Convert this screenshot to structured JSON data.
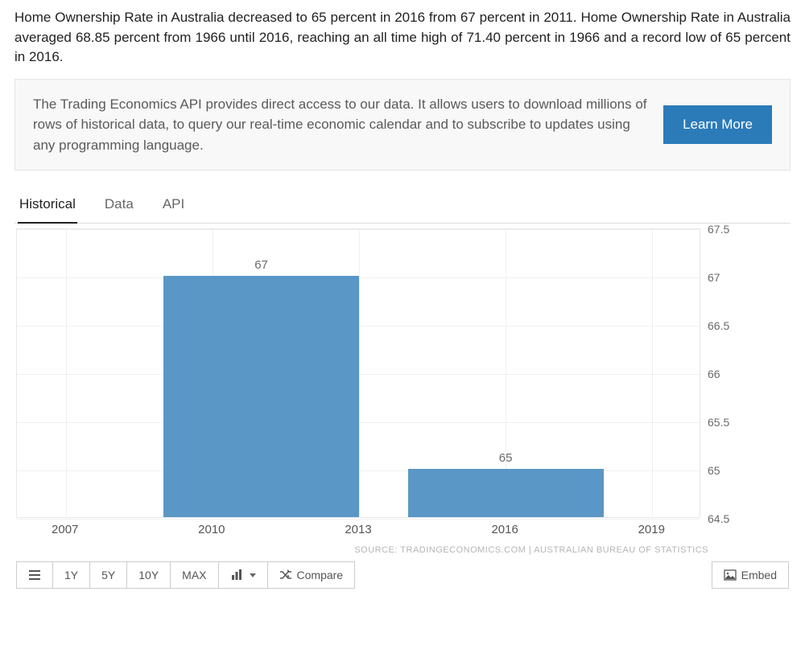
{
  "description": "Home Ownership Rate in Australia decreased to 65 percent in 2016 from 67 percent in 2011. Home Ownership Rate in Australia averaged 68.85 percent from 1966 until 2016, reaching an all time high of 71.40 percent in 1966 and a record low of 65 percent in 2016.",
  "api_box": {
    "text": "The Trading Economics API provides direct access to our data. It allows users to download millions of rows of historical data, to query our real-time economic calendar and to subscribe to updates using any programming language.",
    "button": "Learn More",
    "button_bg": "#2b7bb9"
  },
  "tabs": [
    {
      "label": "Historical",
      "active": true
    },
    {
      "label": "Data",
      "active": false
    },
    {
      "label": "API",
      "active": false
    }
  ],
  "chart": {
    "type": "bar",
    "bar_color": "#5a97c6",
    "background_color": "#ffffff",
    "grid_color": "#f0f0f0",
    "border_color": "#e8e8e8",
    "ylim": [
      64.5,
      67.5
    ],
    "ytick_step": 0.5,
    "yticks": [
      64.5,
      65,
      65.5,
      66,
      66.5,
      67,
      67.5
    ],
    "xlim": [
      2006,
      2020
    ],
    "xticks": [
      2007,
      2010,
      2013,
      2016,
      2019
    ],
    "bars": [
      {
        "x_start": 2009,
        "x_end": 2013,
        "value": 67,
        "label": "67"
      },
      {
        "x_start": 2014,
        "x_end": 2018,
        "value": 65,
        "label": "65"
      }
    ],
    "label_fontsize": 15,
    "tick_fontsize": 14,
    "tick_color": "#6a6a6a"
  },
  "source_line": "SOURCE: TRADINGECONOMICS.COM | AUSTRALIAN BUREAU OF STATISTICS",
  "toolbar": {
    "ranges": [
      "1Y",
      "5Y",
      "10Y",
      "MAX"
    ],
    "compare": "Compare",
    "embed": "Embed"
  }
}
